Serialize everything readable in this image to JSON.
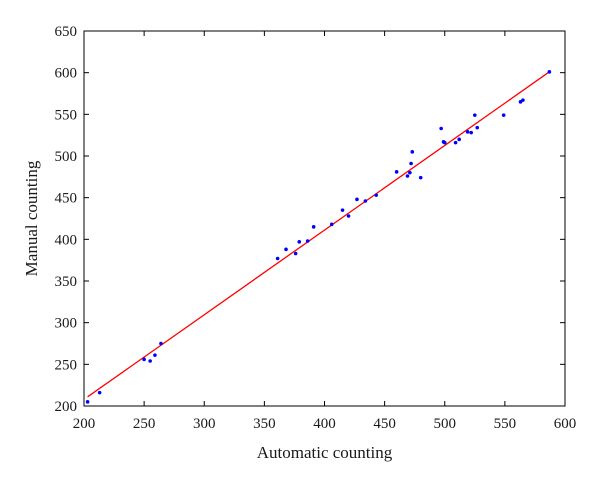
{
  "chart_data": {
    "type": "scatter",
    "xlabel": "Automatic counting",
    "ylabel": "Manual counting",
    "xlim": [
      200,
      600
    ],
    "ylim": [
      200,
      650
    ],
    "xticks": [
      200,
      250,
      300,
      350,
      400,
      450,
      500,
      550,
      600
    ],
    "yticks": [
      200,
      250,
      300,
      350,
      400,
      450,
      500,
      550,
      600,
      650
    ],
    "grid": false,
    "points_color": "#0000ff",
    "fit_line_color": "#ff0000",
    "points": [
      {
        "x": 203,
        "y": 205
      },
      {
        "x": 213,
        "y": 216
      },
      {
        "x": 250,
        "y": 256
      },
      {
        "x": 255,
        "y": 254
      },
      {
        "x": 259,
        "y": 261
      },
      {
        "x": 264,
        "y": 275
      },
      {
        "x": 361,
        "y": 377
      },
      {
        "x": 368,
        "y": 388
      },
      {
        "x": 376,
        "y": 383
      },
      {
        "x": 379,
        "y": 397
      },
      {
        "x": 386,
        "y": 398
      },
      {
        "x": 391,
        "y": 415
      },
      {
        "x": 406,
        "y": 418
      },
      {
        "x": 415,
        "y": 435
      },
      {
        "x": 420,
        "y": 428
      },
      {
        "x": 427,
        "y": 448
      },
      {
        "x": 434,
        "y": 446
      },
      {
        "x": 443,
        "y": 453
      },
      {
        "x": 460,
        "y": 481
      },
      {
        "x": 469,
        "y": 476
      },
      {
        "x": 471,
        "y": 480
      },
      {
        "x": 472,
        "y": 491
      },
      {
        "x": 473,
        "y": 505
      },
      {
        "x": 480,
        "y": 474
      },
      {
        "x": 497,
        "y": 533
      },
      {
        "x": 499,
        "y": 517
      },
      {
        "x": 500,
        "y": 516
      },
      {
        "x": 509,
        "y": 516
      },
      {
        "x": 512,
        "y": 520
      },
      {
        "x": 519,
        "y": 529
      },
      {
        "x": 522,
        "y": 528
      },
      {
        "x": 525,
        "y": 549
      },
      {
        "x": 527,
        "y": 534
      },
      {
        "x": 549,
        "y": 549
      },
      {
        "x": 563,
        "y": 565
      },
      {
        "x": 565,
        "y": 567
      },
      {
        "x": 587,
        "y": 601
      }
    ],
    "fit_line": {
      "x": [
        203,
        587
      ],
      "y": [
        211,
        601
      ]
    }
  }
}
